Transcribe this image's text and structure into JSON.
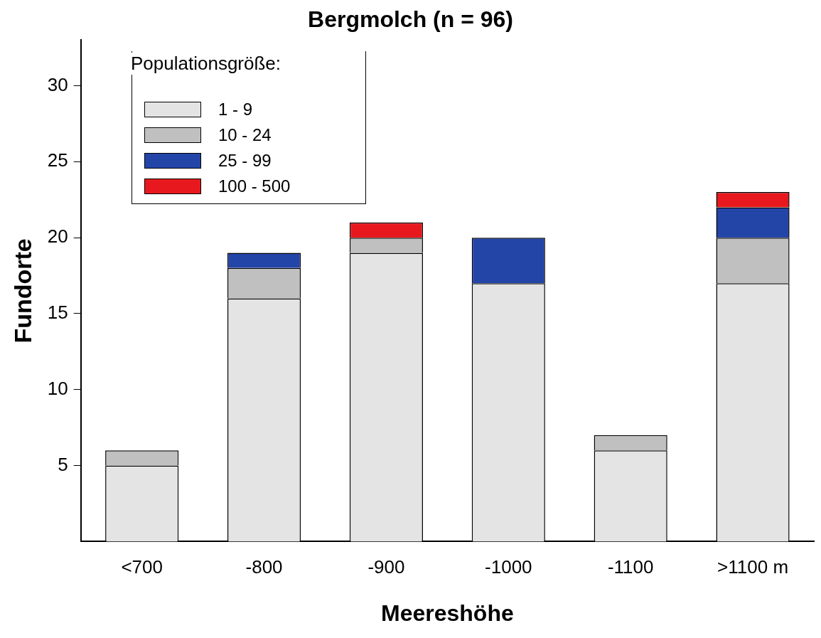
{
  "chart_data": {
    "type": "bar",
    "title": "Bergmolch (n = 96)",
    "xlabel": "Meereshöhe",
    "ylabel": "Fundorte",
    "legend_title": "Populationsgröße:",
    "categories": [
      "<700",
      "-800",
      "-900",
      "-1000",
      "-1100",
      ">1100 m"
    ],
    "stacked": true,
    "ylim": [
      0,
      33
    ],
    "yticks": [
      5,
      10,
      15,
      20,
      25,
      30
    ],
    "grid": false,
    "legend": "top left",
    "series": [
      {
        "name": "1 - 9",
        "color": "#e4e4e4",
        "values": [
          5,
          16,
          19,
          17,
          6,
          17
        ]
      },
      {
        "name": "10 - 24",
        "color": "#c0c0c0",
        "values": [
          1,
          2,
          1,
          0,
          1,
          3
        ]
      },
      {
        "name": "25 - 99",
        "color": "#2445a8",
        "values": [
          0,
          1,
          0,
          3,
          0,
          2
        ]
      },
      {
        "name": "100 - 500",
        "color": "#e8191e",
        "values": [
          0,
          0,
          1,
          0,
          0,
          1
        ]
      }
    ]
  }
}
